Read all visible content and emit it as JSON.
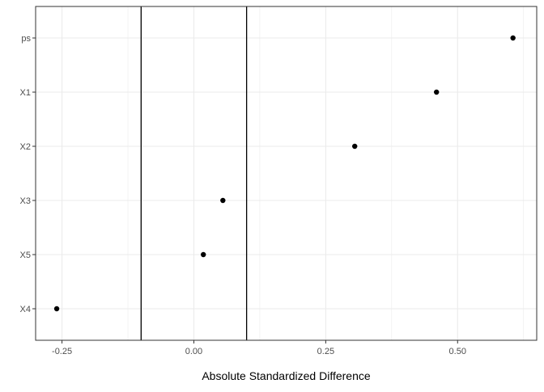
{
  "chart_data": {
    "type": "scatter",
    "title": "",
    "xlabel": "Absolute Standardized Difference",
    "ylabel": "",
    "categories": [
      "ps",
      "X1",
      "X2",
      "X3",
      "X5",
      "X4"
    ],
    "points": [
      {
        "label": "ps",
        "x": 0.605
      },
      {
        "label": "X1",
        "x": 0.46
      },
      {
        "label": "X2",
        "x": 0.305
      },
      {
        "label": "X3",
        "x": 0.055
      },
      {
        "label": "X5",
        "x": 0.018
      },
      {
        "label": "X4",
        "x": -0.26
      }
    ],
    "xlim": [
      -0.3,
      0.65
    ],
    "xticks": [
      -0.25,
      0.0,
      0.25,
      0.5
    ],
    "xtick_labels": [
      "-0.25",
      "0.00",
      "0.25",
      "0.50"
    ],
    "reference_lines": [
      -0.1,
      0.1
    ],
    "grid": true,
    "legend": "none",
    "colors": {
      "points": "#000000",
      "reference_lines": "#000000",
      "grid": "#ebebeb",
      "panel_border": "#333333",
      "axis_text": "#4d4d4d",
      "axis_title": "#000000"
    }
  }
}
